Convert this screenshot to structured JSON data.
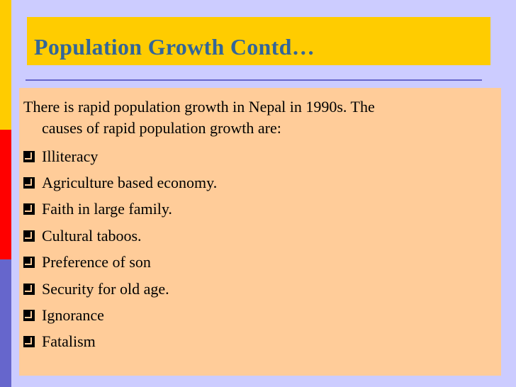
{
  "slide": {
    "title": "Population Growth Contd…",
    "intro_line1": "There is rapid population growth in Nepal in 1990s. The",
    "intro_line2": "causes of rapid population growth are:",
    "bullets": [
      "Illiteracy",
      "Agriculture based economy.",
      "Faith in large family.",
      "Cultural taboos.",
      "Preference of son",
      "Security for old age.",
      "Ignorance",
      "Fatalism"
    ],
    "colors": {
      "background": "#CCCCFF",
      "title_bar": "#FFCC00",
      "title_text": "#336699",
      "body_panel": "#FFCC99",
      "stripe_top": "#FFCC00",
      "stripe_middle": "#FF0000",
      "stripe_bottom": "#6666CC"
    },
    "bullet_icon": "square-bullet-icon"
  }
}
